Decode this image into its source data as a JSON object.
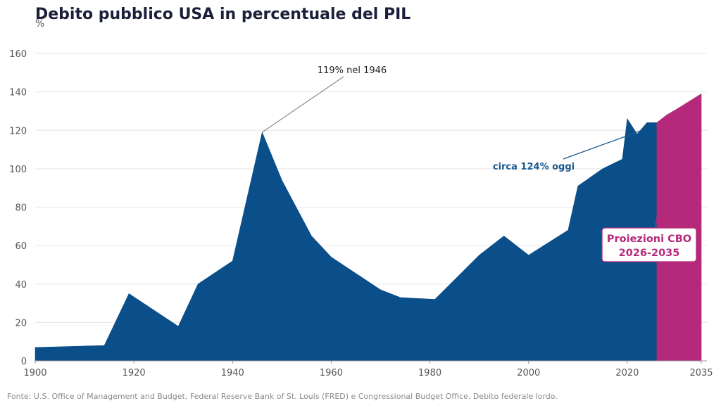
{
  "chart_data": {
    "type": "area",
    "title": "Debito pubblico USA in percentuale del PIL",
    "ylabel": "%",
    "xlim": [
      1900,
      2035
    ],
    "ylim": [
      0,
      160
    ],
    "xticks": [
      1900,
      1920,
      1940,
      1960,
      1980,
      2000,
      2020,
      2035
    ],
    "yticks": [
      0,
      20,
      40,
      60,
      80,
      100,
      120,
      140,
      160
    ],
    "grid": "horizontal",
    "series": [
      {
        "role": "historical",
        "color": "#0b4f8a",
        "x": [
          1900,
          1914,
          1919,
          1929,
          1933,
          1940,
          1946,
          1950,
          1956,
          1960,
          1970,
          1974,
          1981,
          1990,
          1995,
          2000,
          2008,
          2010,
          2015,
          2019,
          2020,
          2022,
          2024,
          2026
        ],
        "y": [
          7,
          8,
          35,
          18,
          40,
          52,
          119,
          94,
          65,
          54,
          37,
          33,
          32,
          55,
          65,
          55,
          68,
          91,
          100,
          105,
          126,
          118,
          124,
          124
        ]
      },
      {
        "role": "projection",
        "color": "#b5297a",
        "x": [
          2026,
          2028,
          2030,
          2035
        ],
        "y": [
          124,
          128,
          131,
          139
        ]
      }
    ],
    "annotations": [
      {
        "text": "119% nel 1946",
        "x": 1946,
        "y": 119,
        "color": "#222222"
      },
      {
        "text": "circa 124% oggi",
        "x": 2024,
        "y": 124,
        "color": "#1b5a8f"
      },
      {
        "text_lines": [
          "Proiezioni CBO",
          "2026-2035"
        ],
        "x": 2032,
        "y": 131,
        "color": "#b5297a"
      }
    ],
    "source": "Fonte: U.S. Office of Management and Budget, Federal Reserve Bank of St. Louis (FRED) e Congressional Budget Office. Debito federale lordo."
  }
}
